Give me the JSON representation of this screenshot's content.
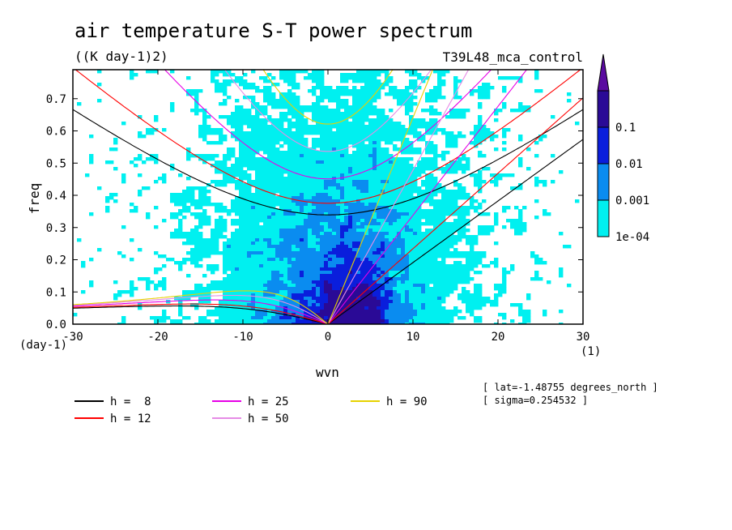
{
  "chart_data": {
    "type": "contour",
    "title": "air temperature S-T power spectrum",
    "units": "((K day-1)2)",
    "experiment": "T39L48_mca_control",
    "xlabel": "wvn",
    "ylabel": "freq",
    "x_unit_label": "(1)",
    "y_unit_label": "(day-1)",
    "xlim": [
      -30,
      30
    ],
    "ylim": [
      0,
      0.79
    ],
    "x_ticks": [
      -30,
      -20,
      -10,
      0,
      10,
      20,
      30
    ],
    "x_tick_labels": [
      "-30",
      "-20",
      "-10",
      "0",
      "10",
      "20",
      "30"
    ],
    "y_ticks": [
      0,
      0.1,
      0.2,
      0.3,
      0.4,
      0.5,
      0.6,
      0.7
    ],
    "y_tick_labels": [
      "0.0",
      "0.1",
      "0.2",
      "0.3",
      "0.4",
      "0.5",
      "0.6",
      "0.7"
    ],
    "contour_levels": [
      {
        "label": "1e-04",
        "value": 0.0001,
        "color": "#00f0f0"
      },
      {
        "label": "0.001",
        "value": 0.001,
        "color": "#0a8cf0"
      },
      {
        "label": "0.01",
        "value": 0.01,
        "color": "#0a1edc"
      },
      {
        "label": "0.1",
        "value": 0.1,
        "color": "#2a0a96"
      }
    ],
    "colorbar_extend_color": "#5a0aa0",
    "dispersion_curves": [
      {
        "label": "h =  8",
        "h": 8,
        "color": "#000000"
      },
      {
        "label": "h = 12",
        "h": 12,
        "color": "#ff0000"
      },
      {
        "label": "h = 25",
        "h": 25,
        "color": "#e600e6"
      },
      {
        "label": "h = 50",
        "h": 50,
        "color": "#e68ce6"
      },
      {
        "label": "h = 90",
        "h": 90,
        "color": "#e6d200"
      }
    ],
    "info": {
      "lat": "[ lat=-1.48755 degrees_north ]",
      "sigma": "[ sigma=0.254532 ]"
    }
  }
}
